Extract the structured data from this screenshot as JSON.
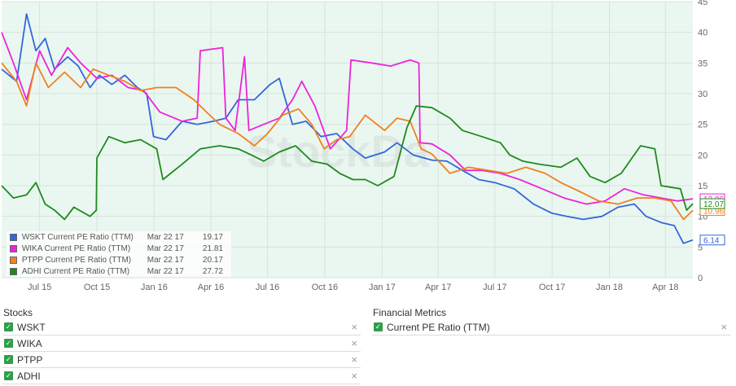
{
  "chart_data": {
    "type": "line",
    "x_axis_labels": [
      "Jul 15",
      "Oct 15",
      "Jan 16",
      "Apr 16",
      "Jul 16",
      "Oct 16",
      "Jan 17",
      "Apr 17",
      "Jul 17",
      "Oct 17",
      "Jan 18",
      "Apr 18"
    ],
    "x_range": [
      "2015-05-01",
      "2018-05-15"
    ],
    "ylim": [
      0,
      45
    ],
    "yticks": [
      0,
      5,
      10,
      15,
      20,
      25,
      30,
      35,
      40,
      45
    ],
    "grid": true,
    "watermark": "StockDa",
    "series": [
      {
        "name": "WSKT Current PE Ratio (TTM)",
        "color": "#3366dd",
        "legend_date": "Mar 22 17",
        "legend_value": "19.17",
        "end_label": "6.14",
        "points": [
          [
            "2015-05-01",
            34
          ],
          [
            "2015-05-25",
            32
          ],
          [
            "2015-06-10",
            43
          ],
          [
            "2015-06-25",
            37
          ],
          [
            "2015-07-10",
            39
          ],
          [
            "2015-07-25",
            34
          ],
          [
            "2015-08-15",
            36
          ],
          [
            "2015-09-01",
            34.5
          ],
          [
            "2015-09-20",
            31
          ],
          [
            "2015-10-05",
            33
          ],
          [
            "2015-10-25",
            31.5
          ],
          [
            "2015-11-15",
            33
          ],
          [
            "2015-12-05",
            31
          ],
          [
            "2015-12-20",
            30
          ],
          [
            "2015-12-31",
            23
          ],
          [
            "2016-01-20",
            22.5
          ],
          [
            "2016-02-15",
            25.5
          ],
          [
            "2016-03-10",
            25
          ],
          [
            "2016-04-05",
            25.5
          ],
          [
            "2016-04-25",
            26
          ],
          [
            "2016-05-15",
            29
          ],
          [
            "2016-06-10",
            29
          ],
          [
            "2016-07-05",
            31.5
          ],
          [
            "2016-07-20",
            32.5
          ],
          [
            "2016-08-10",
            25
          ],
          [
            "2016-09-01",
            25.5
          ],
          [
            "2016-09-25",
            23
          ],
          [
            "2016-10-20",
            23.5
          ],
          [
            "2016-11-15",
            21
          ],
          [
            "2016-12-05",
            19.5
          ],
          [
            "2017-01-05",
            20.5
          ],
          [
            "2017-01-25",
            22
          ],
          [
            "2017-02-20",
            20
          ],
          [
            "2017-03-22",
            19.17
          ],
          [
            "2017-04-15",
            19
          ],
          [
            "2017-05-10",
            17.5
          ],
          [
            "2017-06-05",
            16
          ],
          [
            "2017-07-01",
            15.5
          ],
          [
            "2017-08-01",
            14.5
          ],
          [
            "2017-09-01",
            12
          ],
          [
            "2017-10-01",
            10.5
          ],
          [
            "2017-10-25",
            10
          ],
          [
            "2017-11-20",
            9.5
          ],
          [
            "2017-12-20",
            10
          ],
          [
            "2018-01-15",
            11.5
          ],
          [
            "2018-02-10",
            12
          ],
          [
            "2018-03-01",
            10
          ],
          [
            "2018-03-25",
            9
          ],
          [
            "2018-04-15",
            8.5
          ],
          [
            "2018-04-30",
            5.6
          ],
          [
            "2018-05-15",
            6.14
          ]
        ]
      },
      {
        "name": "WIKA Current PE Ratio (TTM)",
        "color": "#ee22dd",
        "legend_date": "Mar 22 17",
        "legend_value": "21.81",
        "end_label": "12.86",
        "points": [
          [
            "2015-05-01",
            40
          ],
          [
            "2015-05-20",
            35
          ],
          [
            "2015-06-10",
            29
          ],
          [
            "2015-07-01",
            37
          ],
          [
            "2015-07-20",
            33
          ],
          [
            "2015-08-15",
            37.5
          ],
          [
            "2015-09-05",
            35
          ],
          [
            "2015-10-01",
            32.5
          ],
          [
            "2015-10-25",
            33
          ],
          [
            "2015-11-20",
            31
          ],
          [
            "2015-12-15",
            30.5
          ],
          [
            "2016-01-10",
            27
          ],
          [
            "2016-02-15",
            25.5
          ],
          [
            "2016-03-10",
            26
          ],
          [
            "2016-03-15",
            37
          ],
          [
            "2016-04-20",
            37.5
          ],
          [
            "2016-04-25",
            26
          ],
          [
            "2016-05-10",
            24
          ],
          [
            "2016-05-25",
            36
          ],
          [
            "2016-06-01",
            24
          ],
          [
            "2016-06-25",
            25
          ],
          [
            "2016-07-20",
            26
          ],
          [
            "2016-08-10",
            29
          ],
          [
            "2016-08-25",
            32
          ],
          [
            "2016-09-15",
            28
          ],
          [
            "2016-10-10",
            21
          ],
          [
            "2016-11-05",
            24
          ],
          [
            "2016-11-12",
            35.5
          ],
          [
            "2016-12-15",
            35
          ],
          [
            "2017-01-15",
            34.5
          ],
          [
            "2017-02-15",
            35.5
          ],
          [
            "2017-03-01",
            35
          ],
          [
            "2017-03-03",
            22
          ],
          [
            "2017-03-22",
            21.81
          ],
          [
            "2017-04-20",
            20
          ],
          [
            "2017-05-15",
            17.5
          ],
          [
            "2017-06-10",
            17.5
          ],
          [
            "2017-07-10",
            17
          ],
          [
            "2017-08-10",
            16
          ],
          [
            "2017-09-15",
            14.5
          ],
          [
            "2017-10-20",
            13
          ],
          [
            "2017-11-25",
            12
          ],
          [
            "2017-12-25",
            12.5
          ],
          [
            "2018-01-25",
            14.5
          ],
          [
            "2018-02-25",
            13.5
          ],
          [
            "2018-03-25",
            13
          ],
          [
            "2018-04-20",
            12.5
          ],
          [
            "2018-05-15",
            12.86
          ]
        ]
      },
      {
        "name": "PTPP Current PE Ratio (TTM)",
        "color": "#f08020",
        "legend_date": "Mar 22 17",
        "legend_value": "20.17",
        "end_label": "10.96",
        "points": [
          [
            "2015-05-01",
            35
          ],
          [
            "2015-05-25",
            32
          ],
          [
            "2015-06-10",
            28
          ],
          [
            "2015-06-25",
            35
          ],
          [
            "2015-07-15",
            31
          ],
          [
            "2015-08-10",
            33.5
          ],
          [
            "2015-09-05",
            31
          ],
          [
            "2015-09-25",
            34
          ],
          [
            "2015-10-20",
            33
          ],
          [
            "2015-11-15",
            32
          ],
          [
            "2015-12-10",
            30.5
          ],
          [
            "2016-01-05",
            31
          ],
          [
            "2016-02-05",
            31
          ],
          [
            "2016-03-05",
            29
          ],
          [
            "2016-03-25",
            27
          ],
          [
            "2016-04-15",
            25
          ],
          [
            "2016-05-15",
            23.5
          ],
          [
            "2016-06-10",
            21.5
          ],
          [
            "2016-07-01",
            23.5
          ],
          [
            "2016-07-25",
            26.5
          ],
          [
            "2016-08-20",
            27.5
          ],
          [
            "2016-09-10",
            25
          ],
          [
            "2016-09-30",
            21
          ],
          [
            "2016-10-20",
            22.5
          ],
          [
            "2016-11-10",
            23
          ],
          [
            "2016-12-05",
            26.5
          ],
          [
            "2017-01-05",
            24
          ],
          [
            "2017-01-25",
            26
          ],
          [
            "2017-02-15",
            25.5
          ],
          [
            "2017-03-05",
            21
          ],
          [
            "2017-03-22",
            20.17
          ],
          [
            "2017-04-20",
            17
          ],
          [
            "2017-05-20",
            18
          ],
          [
            "2017-06-20",
            17.5
          ],
          [
            "2017-07-20",
            17
          ],
          [
            "2017-08-20",
            18
          ],
          [
            "2017-09-20",
            17
          ],
          [
            "2017-10-15",
            15.5
          ],
          [
            "2017-11-15",
            14
          ],
          [
            "2017-12-15",
            12.5
          ],
          [
            "2018-01-15",
            12
          ],
          [
            "2018-02-15",
            13
          ],
          [
            "2018-03-15",
            13
          ],
          [
            "2018-04-10",
            12.5
          ],
          [
            "2018-04-30",
            9.5
          ],
          [
            "2018-05-15",
            10.96
          ]
        ]
      },
      {
        "name": "ADHI Current PE Ratio (TTM)",
        "color": "#1e8a1e",
        "legend_date": "Mar 22 17",
        "legend_value": "27.72",
        "end_label": "12.07",
        "points": [
          [
            "2015-05-01",
            15
          ],
          [
            "2015-05-20",
            13
          ],
          [
            "2015-06-10",
            13.5
          ],
          [
            "2015-06-25",
            15.5
          ],
          [
            "2015-07-10",
            12
          ],
          [
            "2015-07-25",
            11
          ],
          [
            "2015-08-10",
            9.5
          ],
          [
            "2015-08-25",
            11.5
          ],
          [
            "2015-09-20",
            10
          ],
          [
            "2015-09-30",
            11
          ],
          [
            "2015-10-01",
            19.5
          ],
          [
            "2015-10-20",
            23
          ],
          [
            "2015-11-15",
            22
          ],
          [
            "2015-12-10",
            22.5
          ],
          [
            "2016-01-05",
            21
          ],
          [
            "2016-01-15",
            16
          ],
          [
            "2016-02-15",
            18.5
          ],
          [
            "2016-03-15",
            21
          ],
          [
            "2016-04-15",
            21.5
          ],
          [
            "2016-05-15",
            21
          ],
          [
            "2016-06-05",
            20
          ],
          [
            "2016-06-25",
            19
          ],
          [
            "2016-07-20",
            20.5
          ],
          [
            "2016-08-15",
            21.5
          ],
          [
            "2016-09-10",
            19
          ],
          [
            "2016-10-05",
            18.5
          ],
          [
            "2016-10-25",
            17
          ],
          [
            "2016-11-15",
            16
          ],
          [
            "2016-12-05",
            16
          ],
          [
            "2016-12-25",
            15
          ],
          [
            "2017-01-20",
            16.5
          ],
          [
            "2017-02-10",
            24.5
          ],
          [
            "2017-02-25",
            28
          ],
          [
            "2017-03-22",
            27.72
          ],
          [
            "2017-04-20",
            26
          ],
          [
            "2017-05-10",
            24
          ],
          [
            "2017-06-10",
            23
          ],
          [
            "2017-07-10",
            22
          ],
          [
            "2017-07-25",
            20
          ],
          [
            "2017-08-15",
            19
          ],
          [
            "2017-09-10",
            18.5
          ],
          [
            "2017-10-15",
            18
          ],
          [
            "2017-11-10",
            19.5
          ],
          [
            "2017-12-01",
            16.5
          ],
          [
            "2017-12-25",
            15.5
          ],
          [
            "2018-01-20",
            17
          ],
          [
            "2018-02-20",
            21.5
          ],
          [
            "2018-03-15",
            21
          ],
          [
            "2018-03-25",
            15
          ],
          [
            "2018-04-25",
            14.5
          ],
          [
            "2018-05-05",
            11
          ],
          [
            "2018-05-15",
            12.07
          ]
        ]
      }
    ]
  },
  "stocks": {
    "title": "Stocks",
    "items": [
      "WSKT",
      "WIKA",
      "PTPP",
      "ADHI"
    ],
    "remove_glyph": "×",
    "check_glyph": "✓"
  },
  "metrics": {
    "title": "Financial Metrics",
    "items": [
      "Current PE Ratio (TTM)"
    ],
    "remove_glyph": "×",
    "check_glyph": "✓"
  }
}
